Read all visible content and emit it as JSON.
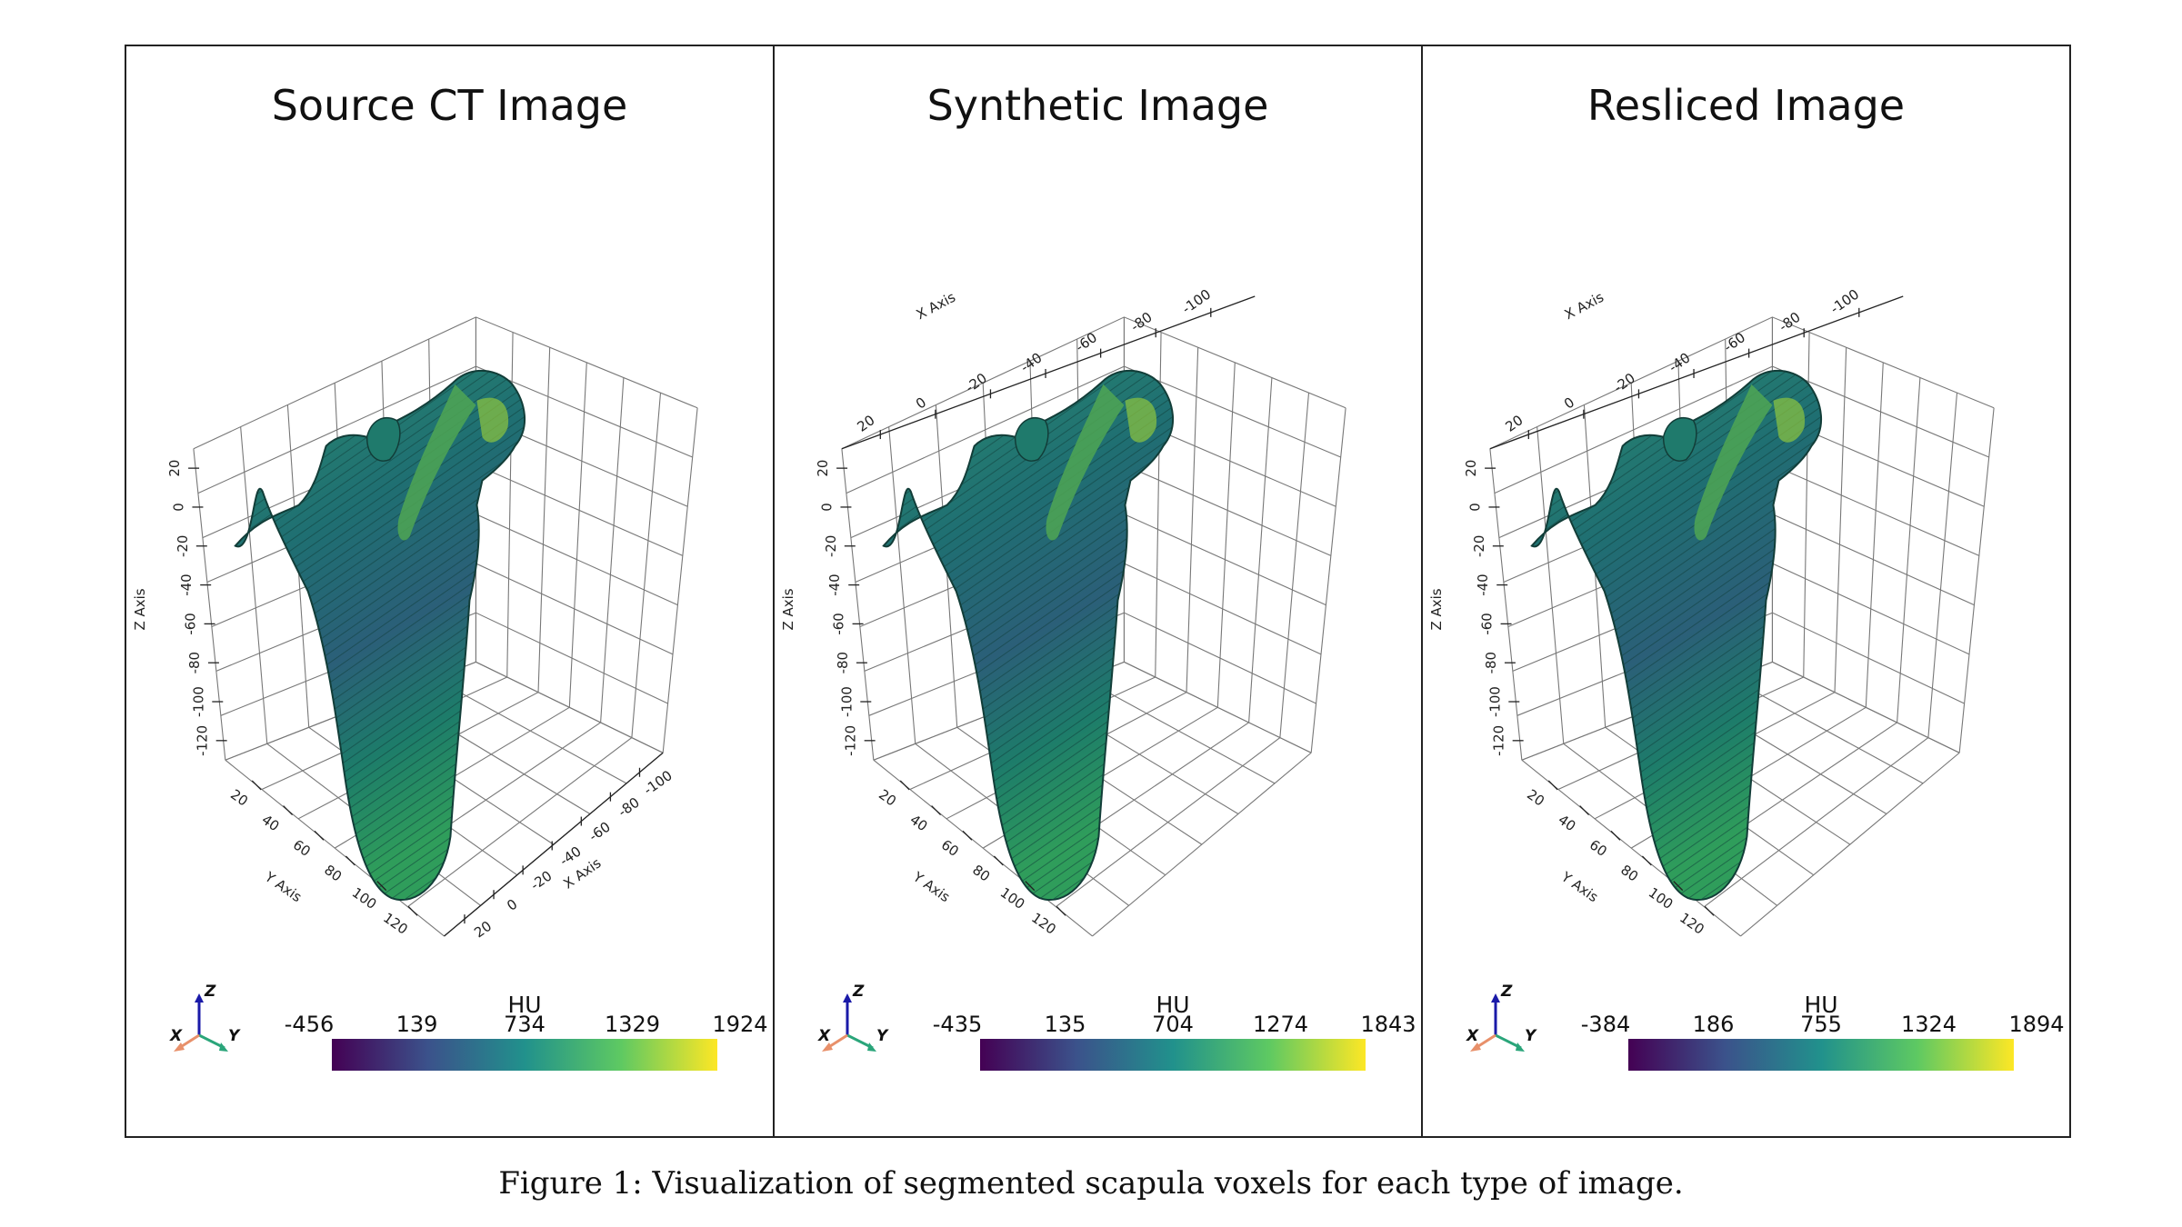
{
  "figure": {
    "caption": "Figure 1: Visualization of segmented scapula voxels for each type of image.",
    "colormap": [
      "#440154",
      "#3b528b",
      "#21918c",
      "#5ec962",
      "#fde725"
    ],
    "axis_labels": {
      "x": "X Axis",
      "y": "Y Axis",
      "z": "Z Axis"
    },
    "triad_labels": {
      "x": "X",
      "y": "Y",
      "z": "Z"
    },
    "triad_colors": {
      "x": "#e8906a",
      "y": "#2aa57a",
      "z": "#1a1aa8"
    },
    "z_ticks": [
      "20",
      "0",
      "-20",
      "-40",
      "-60",
      "-80",
      "-100",
      "-120"
    ],
    "y_ticks": [
      "20",
      "40",
      "60",
      "80",
      "100",
      "120"
    ],
    "x_ticks": [
      "20",
      "0",
      "-20",
      "-40",
      "-60",
      "-80",
      "-100"
    ],
    "panels": [
      {
        "title": "Source CT Image",
        "colorbar": {
          "title": "HU",
          "ticks": [
            "-456",
            "139",
            "734",
            "1329",
            "1924"
          ]
        }
      },
      {
        "title": "Synthetic Image",
        "colorbar": {
          "title": "HU",
          "ticks": [
            "-435",
            "135",
            "704",
            "1274",
            "1843"
          ]
        }
      },
      {
        "title": "Resliced Image",
        "colorbar": {
          "title": "HU",
          "ticks": [
            "-384",
            "186",
            "755",
            "1324",
            "1894"
          ]
        }
      }
    ]
  }
}
